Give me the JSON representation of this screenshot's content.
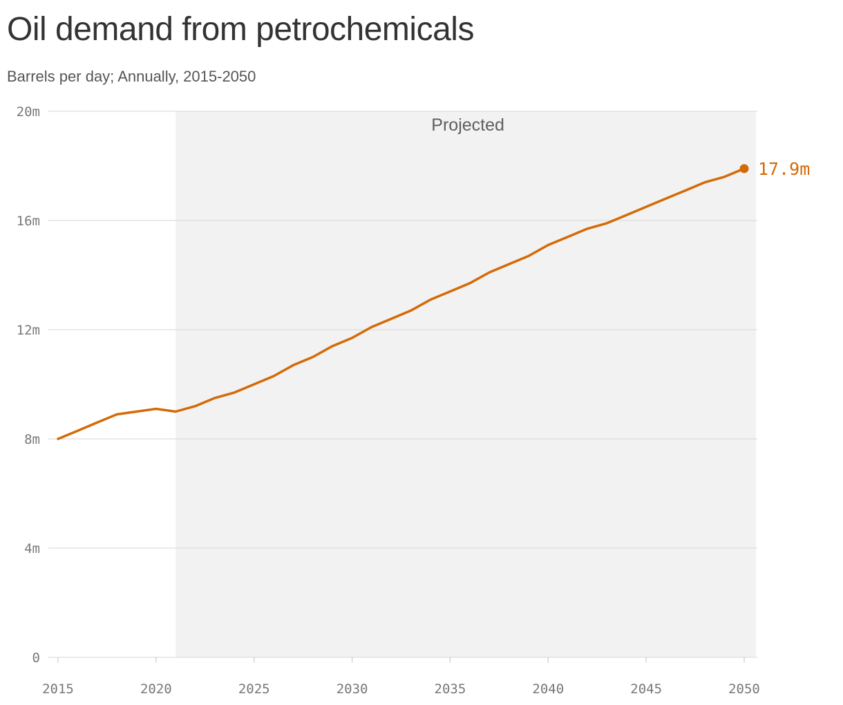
{
  "header": {
    "title": "Oil demand from petrochemicals",
    "subtitle": "Barrels per day; Annually, 2015-2050"
  },
  "colors": {
    "series": "#d46a06",
    "projected_band": "#f2f2f2",
    "grid": "#dddddd"
  },
  "chart_data": {
    "type": "line",
    "title": "Oil demand from petrochemicals",
    "subtitle": "Barrels per day; Annually, 2015-2050",
    "xlabel": "",
    "ylabel": "",
    "xlim": [
      2015,
      2050
    ],
    "ylim": [
      0,
      20000000
    ],
    "grid": true,
    "x_ticks": [
      2015,
      2020,
      2025,
      2030,
      2035,
      2040,
      2045,
      2050
    ],
    "x_tick_labels": [
      "2015",
      "2020",
      "2025",
      "2030",
      "2035",
      "2040",
      "2045",
      "2050"
    ],
    "y_ticks": [
      0,
      4000000,
      8000000,
      12000000,
      16000000,
      20000000
    ],
    "y_tick_labels": [
      "0",
      "4m",
      "8m",
      "12m",
      "16m",
      "20m"
    ],
    "projected_range": [
      2021,
      2050
    ],
    "projected_label": "Projected",
    "end_label": "17.9m",
    "series": [
      {
        "x": [
          2015,
          2016,
          2017,
          2018,
          2019,
          2020,
          2021,
          2022,
          2023,
          2024,
          2025,
          2026,
          2027,
          2028,
          2029,
          2030,
          2031,
          2032,
          2033,
          2034,
          2035,
          2036,
          2037,
          2038,
          2039,
          2040,
          2041,
          2042,
          2043,
          2044,
          2045,
          2046,
          2047,
          2048,
          2049,
          2050
        ],
        "values": [
          8000000,
          8300000,
          8600000,
          8900000,
          9000000,
          9100000,
          9000000,
          9200000,
          9500000,
          9700000,
          10000000,
          10300000,
          10700000,
          11000000,
          11400000,
          11700000,
          12100000,
          12400000,
          12700000,
          13100000,
          13400000,
          13700000,
          14100000,
          14400000,
          14700000,
          15100000,
          15400000,
          15700000,
          15900000,
          16200000,
          16500000,
          16800000,
          17100000,
          17400000,
          17600000,
          17900000
        ]
      }
    ]
  }
}
